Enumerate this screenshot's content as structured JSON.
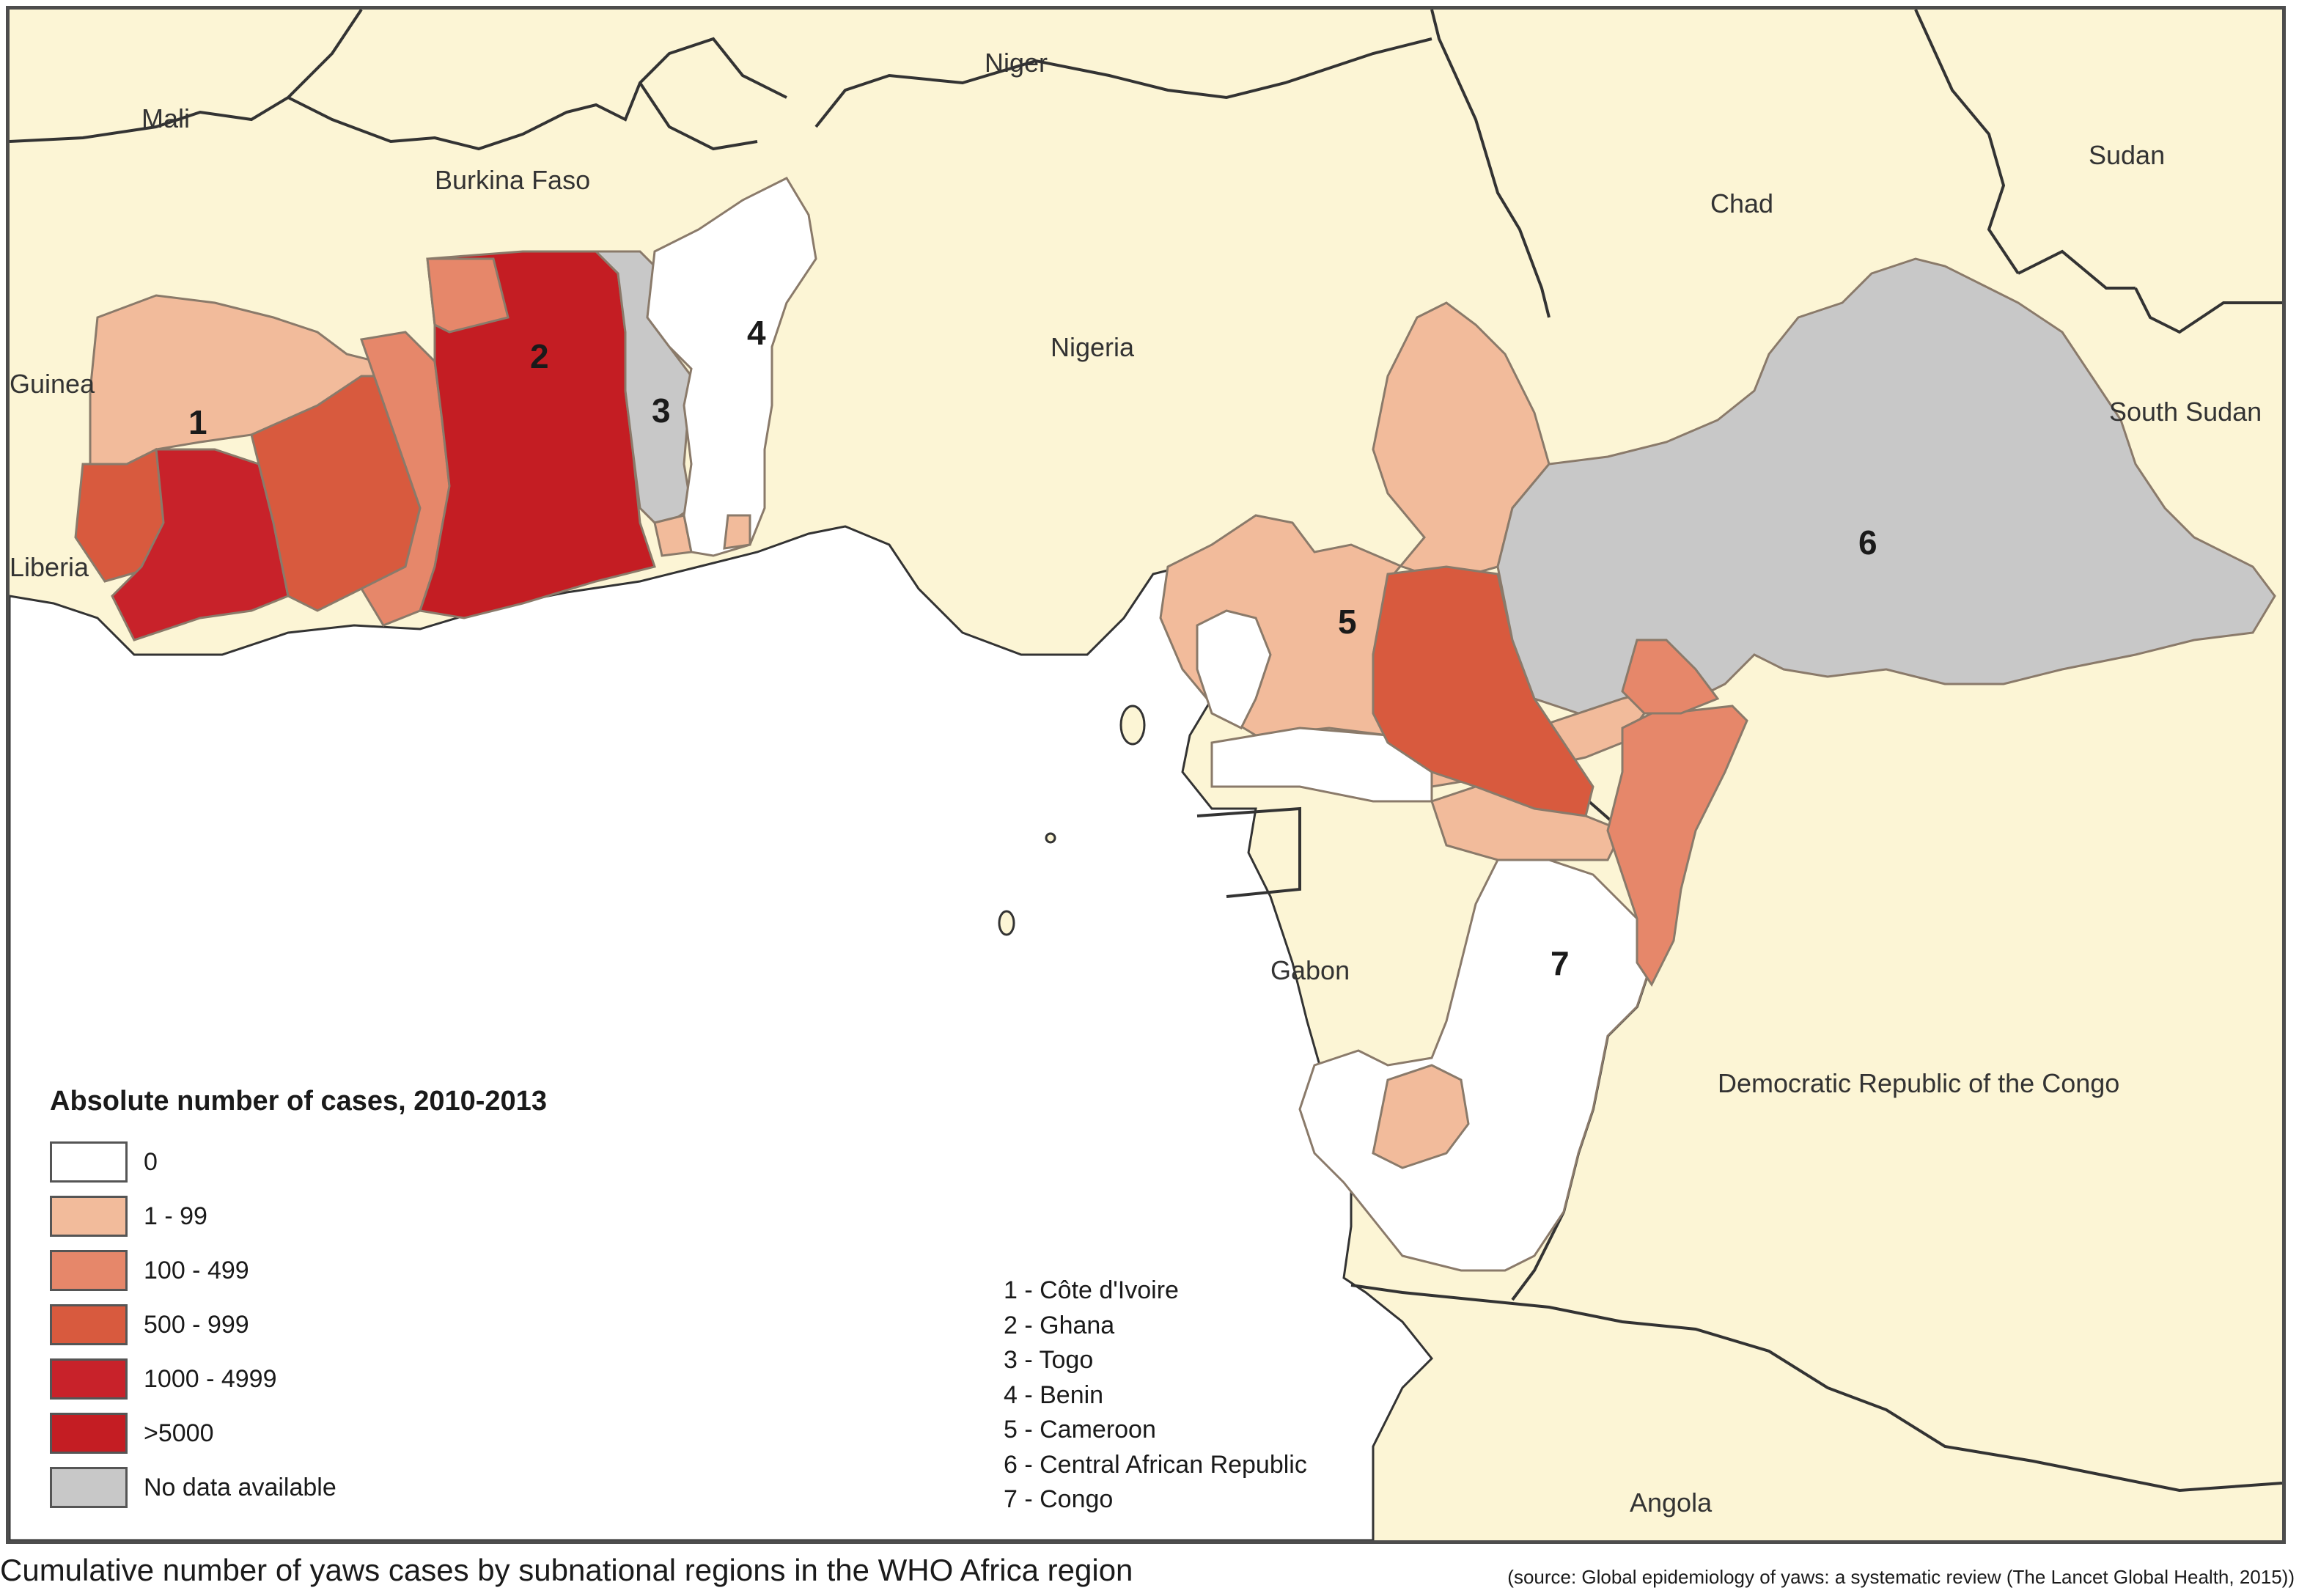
{
  "legend": {
    "title": "Absolute number of cases, 2010-2013",
    "items": [
      {
        "label": "0",
        "color": "#ffffff"
      },
      {
        "label": "1 - 99",
        "color": "#f2bb9b"
      },
      {
        "label": "100 - 499",
        "color": "#e6876a"
      },
      {
        "label": "500 - 999",
        "color": "#d85a3e"
      },
      {
        "label": "1000 - 4999",
        "color": "#c8222a"
      },
      {
        "label": ">5000",
        "color": "#c41d23"
      },
      {
        "label": "No data available",
        "color": "#c8c8c8"
      }
    ]
  },
  "country_labels": {
    "mali": "Mali",
    "niger": "Niger",
    "burkina_faso": "Burkina Faso",
    "chad": "Chad",
    "sudan": "Sudan",
    "guinea": "Guinea",
    "nigeria": "Nigeria",
    "south_sudan": "South Sudan",
    "liberia": "Liberia",
    "gabon": "Gabon",
    "drc": "Democratic Republic of the Congo",
    "angola": "Angola"
  },
  "study_country_numbers": [
    "1",
    "2",
    "3",
    "4",
    "5",
    "6",
    "7"
  ],
  "study_countries": [
    "1 - Côte d'Ivoire",
    "2 - Ghana",
    "3 - Togo",
    "4 - Benin",
    "5 - Cameroon",
    "6 - Central African Republic",
    "7 - Congo"
  ],
  "caption": "Cumulative number of yaws cases by subnational regions in the WHO Africa region",
  "source": "(source: Global epidemiology of yaws: a systematic review (The Lancet Global Health, 2015))",
  "colors": {
    "land": "#fcf5d5",
    "sea": "#ffffff",
    "border": "#333333",
    "subregion_border": "#8a7a6a"
  }
}
